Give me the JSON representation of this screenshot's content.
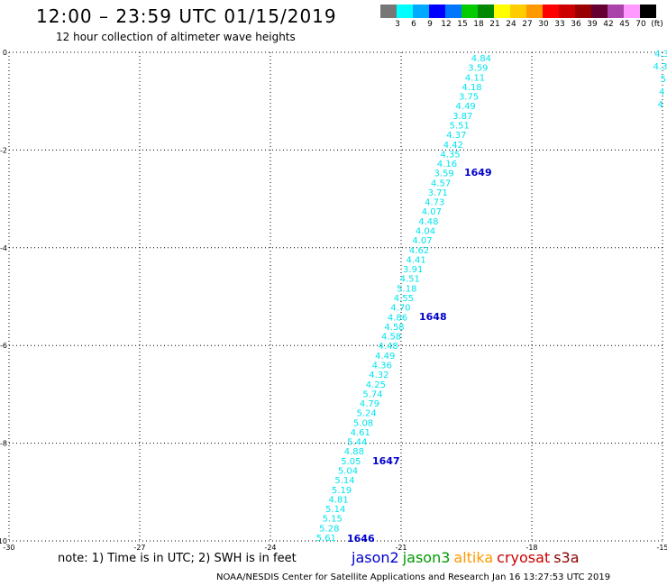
{
  "header": {
    "title": "12:00 – 23:59 UTC 01/15/2019",
    "subtitle": "12 hour collection of altimeter wave heights"
  },
  "color_legend": {
    "colors": [
      "#777777",
      "#00ffff",
      "#00aaff",
      "#0000ff",
      "#0077ff",
      "#00cc00",
      "#008800",
      "#ffff00",
      "#ffcc00",
      "#ff9900",
      "#ff0000",
      "#cc0000",
      "#990000",
      "#660033",
      "#aa44aa",
      "#ff99ff",
      "#000000"
    ],
    "labels": [
      "3",
      "6",
      "9",
      "12",
      "15",
      "18",
      "21",
      "24",
      "27",
      "30",
      "33",
      "36",
      "39",
      "42",
      "45",
      "70",
      "(ft)"
    ]
  },
  "axes": {
    "x_ticks": [
      "-30",
      "-27",
      "-24",
      "-21",
      "-18",
      "-15"
    ],
    "y_ticks": [
      "0",
      "-2",
      "-4",
      "-6",
      "-8",
      "-10"
    ]
  },
  "swh_values": [
    "4.84",
    "3.59",
    "4.11",
    "4.18",
    "3.75",
    "4.49",
    "3.87",
    "5.51",
    "4.37",
    "4.42",
    "4.35",
    "4.16",
    "3.59",
    "4.57",
    "3.71",
    "4.73",
    "4.07",
    "4.48",
    "4.04",
    "4.07",
    "4.62",
    "4.41",
    "3.91",
    "4.51",
    "5.18",
    "4.55",
    "4.70",
    "4.86",
    "4.58",
    "4.58",
    "4.48",
    "4.49",
    "4.36",
    "4.32",
    "4.25",
    "5.74",
    "4.79",
    "5.24",
    "5.08",
    "4.61",
    "5.44",
    "4.88",
    "5.05",
    "5.04",
    "5.14",
    "5.19",
    "4.81",
    "5.14",
    "5.15",
    "5.28",
    "5.61"
  ],
  "edge_values": [
    "4.3",
    "4.3",
    "5",
    "4",
    "4"
  ],
  "pass_labels": [
    "1649",
    "1648",
    "1647",
    "1646"
  ],
  "footer": {
    "note": "note: 1) Time is in UTC; 2) SWH is in feet",
    "credit": "NOAA/NESDIS Center for Satellite Applications and Research   Jan 16 13:27:53 UTC 2019"
  },
  "satellites": [
    {
      "name": "jason2",
      "color": "#0000cc"
    },
    {
      "name": "jason3",
      "color": "#009900"
    },
    {
      "name": "altika",
      "color": "#ff9900"
    },
    {
      "name": "cryosat",
      "color": "#cc0000"
    },
    {
      "name": "s3a",
      "color": "#880000"
    }
  ],
  "map_extent": {
    "lon": [
      -30,
      -15
    ],
    "lat": [
      -10,
      0
    ]
  }
}
